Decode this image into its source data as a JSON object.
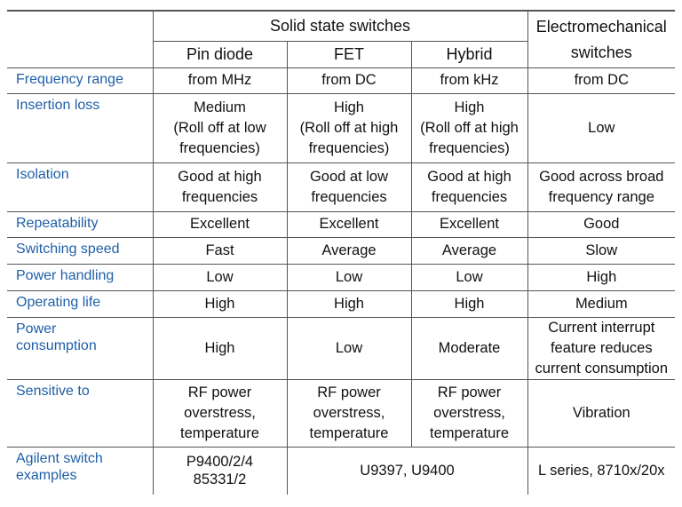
{
  "headers": {
    "solid_state": "Solid state switches",
    "pin_diode": "Pin diode",
    "fet": "FET",
    "hybrid": "Hybrid",
    "electro_line1": "Electromechanical",
    "electro_line2": "switches"
  },
  "rows": [
    {
      "label": [
        "Frequency range"
      ],
      "cells": [
        [
          "from MHz"
        ],
        [
          "from DC"
        ],
        [
          "from kHz"
        ],
        [
          "from DC"
        ]
      ]
    },
    {
      "label": [
        "Insertion loss"
      ],
      "cells": [
        [
          "Medium",
          "(Roll off at low",
          "frequencies)"
        ],
        [
          "High",
          "(Roll off at high",
          "frequencies)"
        ],
        [
          "High",
          "(Roll off at high",
          "frequencies)"
        ],
        [
          "Low"
        ]
      ]
    },
    {
      "label": [
        "Isolation"
      ],
      "cells": [
        [
          "Good at high",
          "frequencies"
        ],
        [
          "Good at low",
          "frequencies"
        ],
        [
          "Good at high",
          "frequencies"
        ],
        [
          "Good across broad",
          "frequency range"
        ]
      ]
    },
    {
      "label": [
        "Repeatability"
      ],
      "cells": [
        [
          "Excellent"
        ],
        [
          "Excellent"
        ],
        [
          "Excellent"
        ],
        [
          "Good"
        ]
      ]
    },
    {
      "label": [
        "Switching speed"
      ],
      "cells": [
        [
          "Fast"
        ],
        [
          "Average"
        ],
        [
          "Average"
        ],
        [
          "Slow"
        ]
      ]
    },
    {
      "label": [
        "Power handling"
      ],
      "cells": [
        [
          "Low"
        ],
        [
          "Low"
        ],
        [
          "Low"
        ],
        [
          "High"
        ]
      ]
    },
    {
      "label": [
        "Operating life"
      ],
      "cells": [
        [
          "High"
        ],
        [
          "High"
        ],
        [
          "High"
        ],
        [
          "Medium"
        ]
      ]
    },
    {
      "label": [
        "Power",
        "consumption"
      ],
      "cells": [
        [
          "High"
        ],
        [
          "Low"
        ],
        [
          "Moderate"
        ],
        [
          "Current interrupt",
          "feature reduces",
          "current consumption"
        ]
      ]
    },
    {
      "label": [
        "Sensitive to"
      ],
      "cells": [
        [
          "RF power",
          "overstress,",
          "temperature"
        ],
        [
          "RF power",
          "overstress,",
          "temperature"
        ],
        [
          "RF power",
          "overstress,",
          "temperature"
        ],
        [
          "Vibration"
        ]
      ]
    }
  ],
  "examples": {
    "label": [
      "Agilent switch",
      "examples"
    ],
    "pin_diode": [
      "P9400/2/4",
      "85331/2"
    ],
    "fet_hybrid": "U9397, U9400",
    "electro": "L series, 8710x/20x"
  },
  "colors": {
    "label_blue": "#1f5fa8",
    "rule": "#555555"
  }
}
